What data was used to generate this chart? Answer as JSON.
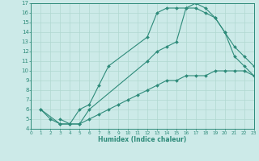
{
  "line1_x": [
    1,
    2,
    3,
    4,
    5,
    6,
    7,
    8,
    12,
    13,
    14,
    15,
    16,
    17,
    18,
    19,
    20,
    21,
    22,
    23
  ],
  "line1_y": [
    6.0,
    5.0,
    4.5,
    4.5,
    6.0,
    6.5,
    8.5,
    10.5,
    13.5,
    16.0,
    16.5,
    16.5,
    16.5,
    17.0,
    16.5,
    15.5,
    14.0,
    11.5,
    10.5,
    9.5
  ],
  "line2_x": [
    3,
    4,
    5,
    6,
    12,
    13,
    14,
    15,
    16,
    17,
    18,
    19,
    20,
    21,
    22,
    23
  ],
  "line2_y": [
    5.0,
    4.5,
    4.5,
    6.0,
    11.0,
    12.0,
    12.5,
    13.0,
    16.5,
    16.5,
    16.0,
    15.5,
    14.0,
    12.5,
    11.5,
    10.5
  ],
  "line3_x": [
    1,
    3,
    4,
    5,
    6,
    7,
    8,
    9,
    10,
    11,
    12,
    13,
    14,
    15,
    16,
    17,
    18,
    19,
    20,
    21,
    22,
    23
  ],
  "line3_y": [
    6.0,
    4.5,
    4.5,
    4.5,
    5.0,
    5.5,
    6.0,
    6.5,
    7.0,
    7.5,
    8.0,
    8.5,
    9.0,
    9.0,
    9.5,
    9.5,
    9.5,
    10.0,
    10.0,
    10.0,
    10.0,
    9.5
  ],
  "color": "#2e8b7a",
  "bg_color": "#cceae8",
  "xlabel": "Humidex (Indice chaleur)",
  "xlim": [
    0,
    23
  ],
  "ylim": [
    4,
    17
  ],
  "xticks": [
    0,
    1,
    2,
    3,
    4,
    5,
    6,
    7,
    8,
    9,
    10,
    11,
    12,
    13,
    14,
    15,
    16,
    17,
    18,
    19,
    20,
    21,
    22,
    23
  ],
  "yticks": [
    4,
    5,
    6,
    7,
    8,
    9,
    10,
    11,
    12,
    13,
    14,
    15,
    16,
    17
  ],
  "grid_color": "#b0d8d0",
  "markersize": 2.0,
  "linewidth": 0.8
}
